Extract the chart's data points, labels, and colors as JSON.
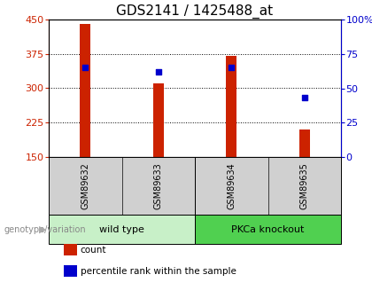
{
  "title": "GDS2141 / 1425488_at",
  "samples": [
    "GSM89632",
    "GSM89633",
    "GSM89634",
    "GSM89635"
  ],
  "counts": [
    440,
    310,
    370,
    210
  ],
  "percentiles": [
    65,
    62,
    65,
    43
  ],
  "ylim_left": [
    150,
    450
  ],
  "ylim_right": [
    0,
    100
  ],
  "yticks_left": [
    150,
    225,
    300,
    375,
    450
  ],
  "yticks_right": [
    0,
    25,
    50,
    75,
    100
  ],
  "groups": [
    {
      "label": "wild type",
      "indices": [
        0,
        1
      ],
      "color": "#c8f0c8"
    },
    {
      "label": "PKCa knockout",
      "indices": [
        2,
        3
      ],
      "color": "#50d050"
    }
  ],
  "bar_color": "#cc2200",
  "percentile_color": "#0000cc",
  "bar_width": 0.15,
  "bar_bottom": 150,
  "group_label_prefix": "genotype/variation",
  "legend_items": [
    {
      "label": "count",
      "color": "#cc2200"
    },
    {
      "label": "percentile rank within the sample",
      "color": "#0000cc"
    }
  ],
  "title_color": "#000000",
  "axis_color_left": "#cc2200",
  "axis_color_right": "#0000cc",
  "tick_label_area_color": "#d0d0d0",
  "title_fontsize": 11,
  "tick_fontsize": 8,
  "label_fontsize": 8,
  "sample_fontsize": 7
}
